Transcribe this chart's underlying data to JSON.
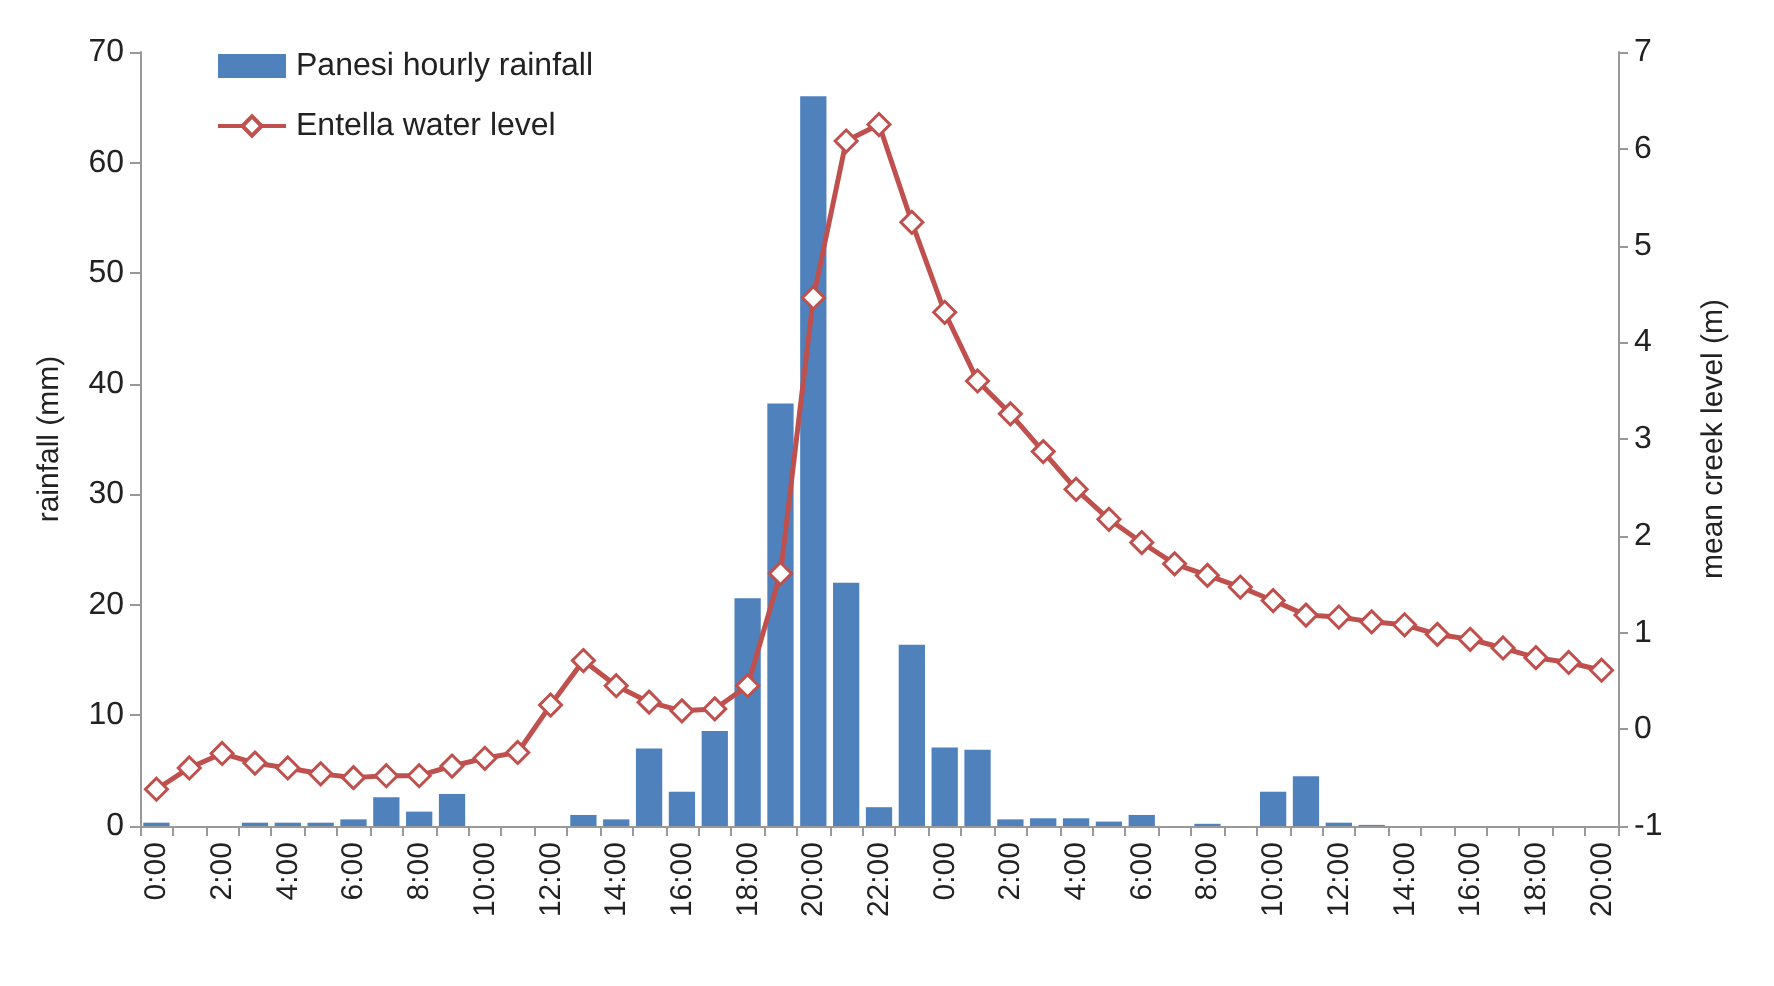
{
  "chart_data": {
    "type": "bar",
    "ylabel": "rainfall (mm)",
    "y2label": "mean creek level (m)",
    "categories": [
      "0:00",
      null,
      "2:00",
      null,
      "4:00",
      null,
      "6:00",
      null,
      "8:00",
      null,
      "10:00",
      null,
      "12:00",
      null,
      "14:00",
      null,
      "16:00",
      null,
      "18:00",
      null,
      "20:00",
      null,
      "22:00",
      null,
      "0:00",
      null,
      "2:00",
      null,
      "4:00",
      null,
      "6:00",
      null,
      "8:00",
      null,
      "10:00",
      null,
      "12:00",
      null,
      "14:00",
      null,
      "16:00",
      null,
      "18:00",
      null,
      "20:00"
    ],
    "series": [
      {
        "name": "Panesi hourly rainfall",
        "color": "#4f81bd",
        "values": [
          0.3,
          0,
          0,
          0.3,
          0.3,
          0.3,
          0.6,
          2.6,
          1.3,
          2.9,
          0,
          0,
          0,
          1.0,
          0.6,
          7.0,
          3.1,
          8.6,
          20.6,
          38.2,
          66,
          22,
          1.7,
          16.4,
          7.1,
          6.9,
          0.6,
          0.7,
          0.7,
          0.4,
          1.0,
          0,
          0.2,
          0,
          3.1,
          4.5,
          0.3,
          0.1,
          0,
          0,
          0,
          0,
          0,
          0,
          0
        ]
      },
      {
        "name": "Entella water level",
        "type": "line",
        "axis": "y2",
        "color": "#c0504d",
        "marker": "diamond",
        "values": [
          -0.62,
          -0.4,
          -0.25,
          -0.35,
          -0.4,
          -0.46,
          -0.5,
          -0.48,
          -0.48,
          -0.38,
          -0.3,
          -0.24,
          0.25,
          0.71,
          0.45,
          0.28,
          0.19,
          0.21,
          0.45,
          1.61,
          4.46,
          6.08,
          6.25,
          5.24,
          4.31,
          3.6,
          3.26,
          2.87,
          2.48,
          2.17,
          1.93,
          1.71,
          1.59,
          1.47,
          1.33,
          1.18,
          1.16,
          1.11,
          1.08,
          0.98,
          0.93,
          0.84,
          0.74,
          0.69,
          0.61
        ]
      }
    ],
    "ylim": [
      0,
      70
    ],
    "yticks": [
      0,
      10,
      20,
      30,
      40,
      50,
      60,
      70
    ],
    "y2lim": [
      -1,
      7
    ],
    "y2ticks": [
      -1,
      0,
      1,
      2,
      3,
      4,
      5,
      6,
      7
    ],
    "grid": false,
    "legend": "top left"
  }
}
